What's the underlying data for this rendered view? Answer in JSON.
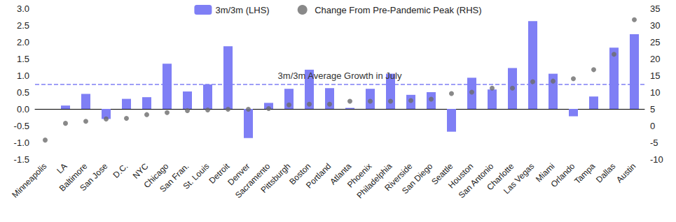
{
  "chart_data": {
    "type": "bar",
    "categories": [
      "Minneapolis",
      "LA",
      "Baltimore",
      "San Jose",
      "D.C.",
      "NYC",
      "Chicago",
      "San Fran.",
      "St. Louis",
      "Detroit",
      "Denver",
      "Sacramento",
      "Pittsburgh",
      "Boston",
      "Portland",
      "Atlanta",
      "Phoenix",
      "Philadelphia",
      "Riverside",
      "San Diego",
      "Seattle",
      "Houston",
      "San Antonio",
      "Charlotte",
      "Las Vegas",
      "Miami",
      "Orlando",
      "Tampa",
      "Dallas",
      "Austin"
    ],
    "series": [
      {
        "name": "3m/3m (LHS)",
        "type": "bar",
        "color": "#7f7ff5",
        "values": [
          0,
          0.1,
          0.45,
          -0.3,
          0.3,
          0.35,
          1.35,
          0.52,
          0.73,
          1.87,
          -0.87,
          0.18,
          0.6,
          1.17,
          0.62,
          0.03,
          0.6,
          1.05,
          0.42,
          0.5,
          -0.68,
          0.93,
          0.58,
          1.22,
          2.62,
          1.05,
          -0.22,
          0.37,
          1.83,
          2.23
        ]
      },
      {
        "name": "Change From Pre-Pandemic Peak (RHS)",
        "type": "scatter",
        "axis": "y2",
        "color": "#6b6b6b",
        "marker": "circle",
        "values": [
          -4.3,
          0.7,
          1.3,
          2.0,
          2.2,
          3.3,
          3.9,
          4.5,
          4.7,
          4.9,
          4.9,
          5.1,
          6.2,
          6.4,
          6.4,
          7.3,
          7.3,
          7.3,
          7.5,
          7.9,
          9.6,
          10.0,
          11.2,
          11.2,
          13.1,
          13.3,
          14.0,
          16.7,
          21.3,
          31.6
        ]
      }
    ],
    "average_line": {
      "value": 0.74,
      "label": "3m/3m Average Growth in July",
      "color": "#7f7ff5",
      "line_style": "dashed"
    },
    "ylim": [
      -1.5,
      3.0
    ],
    "yticks": [
      {
        "value": -1.5,
        "label": "-1.5"
      },
      {
        "value": -1,
        "label": "-1.0"
      },
      {
        "value": -0.5,
        "label": "-0.5"
      },
      {
        "value": 0,
        "label": "0.0"
      },
      {
        "value": 0.5,
        "label": "0.5"
      },
      {
        "value": 1,
        "label": "1.0"
      },
      {
        "value": 1.5,
        "label": "1.5"
      },
      {
        "value": 2,
        "label": "2.0"
      },
      {
        "value": 2.5,
        "label": "2.5"
      },
      {
        "value": 3,
        "label": "3.0"
      }
    ],
    "y2lim": [
      -10,
      35
    ],
    "y2ticks": [
      -10,
      -5,
      0,
      5,
      10,
      15,
      20,
      25,
      30,
      35
    ],
    "grid": false,
    "legend": "top"
  }
}
